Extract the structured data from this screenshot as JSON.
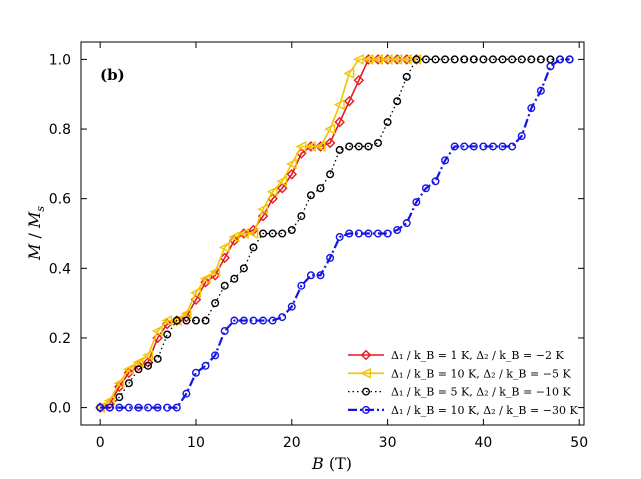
{
  "chart_data": {
    "type": "line",
    "panel_label": "(b)",
    "xlabel": "B (T)",
    "ylabel": "M / M_s",
    "xlabel_main": "B",
    "xlabel_unit": " (T)",
    "ylabel_m": "M",
    "ylabel_sep": " / ",
    "ylabel_ms": "M",
    "ylabel_sub": "s",
    "xlim": [
      -2,
      50.5
    ],
    "ylim": [
      -0.05,
      1.05
    ],
    "xticks": [
      0,
      10,
      20,
      30,
      40,
      50
    ],
    "xtick_labels": [
      "0",
      "10",
      "20",
      "30",
      "40",
      "50"
    ],
    "yticks": [
      0.0,
      0.2,
      0.4,
      0.6,
      0.8,
      1.0
    ],
    "ytick_labels": [
      "0.0",
      "0.2",
      "0.4",
      "0.6",
      "0.8",
      "1.0"
    ],
    "legend_position": "lower-right",
    "series": [
      {
        "name": "Δ1 / kB = 1 K, Δ2 / kB = −2 K",
        "legend_label": "Δ₁ / k_B = 1 K, Δ₂ / k_B = −2 K",
        "color": "#e8191f",
        "marker": "diamond",
        "linestyle": "solid",
        "x": [
          0,
          1,
          2,
          3,
          4,
          5,
          6,
          7,
          8,
          9,
          10,
          11,
          12,
          13,
          14,
          15,
          16,
          17,
          18,
          19,
          20,
          21,
          22,
          23,
          24,
          25,
          26,
          27,
          28,
          29,
          30,
          31,
          32,
          33
        ],
        "y": [
          0.0,
          0.01,
          0.06,
          0.1,
          0.12,
          0.13,
          0.2,
          0.24,
          0.25,
          0.26,
          0.31,
          0.36,
          0.38,
          0.43,
          0.48,
          0.5,
          0.51,
          0.55,
          0.6,
          0.63,
          0.67,
          0.73,
          0.75,
          0.75,
          0.76,
          0.82,
          0.88,
          0.94,
          1.0,
          1.0,
          1.0,
          1.0,
          1.0,
          1.0
        ]
      },
      {
        "name": "Δ1 / kB = 10 K, Δ2 / kB = −5 K",
        "legend_label": "Δ₁ / k_B = 10 K, Δ₂ / k_B = −5 K",
        "color": "#f2c500",
        "marker": "triangle-left",
        "linestyle": "solid",
        "x": [
          0,
          1,
          2,
          3,
          4,
          5,
          6,
          7,
          8,
          9,
          10,
          11,
          12,
          13,
          14,
          15,
          16,
          17,
          18,
          19,
          20,
          21,
          22,
          23,
          24,
          25,
          26,
          27,
          28,
          29,
          30,
          31,
          32,
          33
        ],
        "y": [
          0.0,
          0.02,
          0.07,
          0.11,
          0.13,
          0.15,
          0.22,
          0.25,
          0.25,
          0.27,
          0.33,
          0.37,
          0.39,
          0.46,
          0.49,
          0.5,
          0.5,
          0.57,
          0.62,
          0.65,
          0.7,
          0.75,
          0.75,
          0.75,
          0.8,
          0.87,
          0.96,
          1.0,
          1.0,
          1.0,
          1.0,
          1.0,
          1.0,
          1.0
        ]
      },
      {
        "name": "Δ1 / kB = 5 K, Δ2 / kB = −10 K",
        "legend_label": "Δ₁ / k_B = 5 K, Δ₂ / k_B = −10 K",
        "color": "#000000",
        "marker": "circle",
        "linestyle": "dotted",
        "x": [
          0,
          1,
          2,
          3,
          4,
          5,
          6,
          7,
          8,
          9,
          10,
          11,
          12,
          13,
          14,
          15,
          16,
          17,
          18,
          19,
          20,
          21,
          22,
          23,
          24,
          25,
          26,
          27,
          28,
          29,
          30,
          31,
          32,
          33,
          34,
          35,
          36,
          37,
          38,
          39,
          40,
          41,
          42,
          43,
          44,
          45,
          46,
          47,
          48,
          49
        ],
        "y": [
          0.0,
          0.0,
          0.03,
          0.07,
          0.11,
          0.12,
          0.14,
          0.21,
          0.25,
          0.25,
          0.25,
          0.25,
          0.3,
          0.35,
          0.37,
          0.4,
          0.46,
          0.5,
          0.5,
          0.5,
          0.51,
          0.55,
          0.61,
          0.63,
          0.67,
          0.74,
          0.75,
          0.75,
          0.75,
          0.76,
          0.82,
          0.88,
          0.95,
          1.0,
          1.0,
          1.0,
          1.0,
          1.0,
          1.0,
          1.0,
          1.0,
          1.0,
          1.0,
          1.0,
          1.0,
          1.0,
          1.0,
          1.0,
          1.0,
          1.0
        ]
      },
      {
        "name": "Δ1 / kB = 10 K, Δ2 / kB = −30 K",
        "legend_label": "Δ₁ / k_B = 10 K, Δ₂ / k_B = −30 K",
        "color": "#1414e6",
        "marker": "circle",
        "linestyle": "dashdot",
        "x": [
          0,
          1,
          2,
          3,
          4,
          5,
          6,
          7,
          8,
          9,
          10,
          11,
          12,
          13,
          14,
          15,
          16,
          17,
          18,
          19,
          20,
          21,
          22,
          23,
          24,
          25,
          26,
          27,
          28,
          29,
          30,
          31,
          32,
          33,
          34,
          35,
          36,
          37,
          38,
          39,
          40,
          41,
          42,
          43,
          44,
          45,
          46,
          47,
          48,
          49
        ],
        "y": [
          0.0,
          0.0,
          0.0,
          0.0,
          0.0,
          0.0,
          0.0,
          0.0,
          0.0,
          0.04,
          0.1,
          0.12,
          0.15,
          0.22,
          0.25,
          0.25,
          0.25,
          0.25,
          0.25,
          0.26,
          0.29,
          0.35,
          0.38,
          0.38,
          0.43,
          0.49,
          0.5,
          0.5,
          0.5,
          0.5,
          0.5,
          0.51,
          0.53,
          0.59,
          0.63,
          0.65,
          0.71,
          0.75,
          0.75,
          0.75,
          0.75,
          0.75,
          0.75,
          0.75,
          0.78,
          0.86,
          0.91,
          0.98,
          1.0,
          1.0
        ]
      }
    ]
  }
}
